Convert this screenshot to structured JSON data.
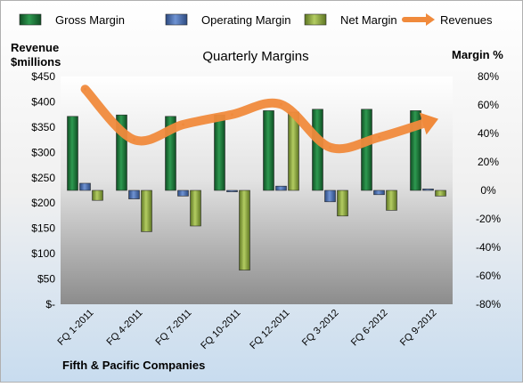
{
  "chart_data": {
    "type": "bar",
    "title": "Quarterly Margins",
    "left_axis_title_line1": "Revenue",
    "left_axis_title_line2": "$millions",
    "right_axis_title": "Margin %",
    "footer": "Fifth & Pacific Companies",
    "categories": [
      "FQ 1-2011",
      "FQ 4-2011",
      "FQ 7-2011",
      "FQ 10-2011",
      "FQ 12-2011",
      "FQ 3-2012",
      "FQ 6-2012",
      "FQ 9-2012"
    ],
    "left_axis": {
      "min": 0,
      "max": 450,
      "step": 50,
      "tick_labels": [
        "$-",
        "$50",
        "$100",
        "$150",
        "$200",
        "$250",
        "$300",
        "$350",
        "$400",
        "$450"
      ]
    },
    "right_axis": {
      "min": -80,
      "max": 80,
      "step": 20,
      "tick_labels": [
        "-80%",
        "-60%",
        "-40%",
        "-20%",
        "0%",
        "20%",
        "40%",
        "60%",
        "80%"
      ]
    },
    "legend_position": "top",
    "series": [
      {
        "name": "Gross Margin",
        "kind": "bar",
        "axis": "right",
        "color": "#1e7a3c",
        "values": [
          52,
          53,
          52,
          53,
          56,
          57,
          57,
          56
        ]
      },
      {
        "name": "Operating Margin",
        "kind": "bar",
        "axis": "right",
        "color": "#4a6fb5",
        "values": [
          5,
          -6,
          -4,
          -1,
          3,
          -8,
          -3,
          1
        ]
      },
      {
        "name": "Net Margin",
        "kind": "bar",
        "axis": "right",
        "color": "#8fac3a",
        "values": [
          -7,
          -29,
          -25,
          -56,
          55,
          -18,
          -14,
          -4
        ]
      },
      {
        "name": "Revenues",
        "kind": "line",
        "axis": "left",
        "color": "#f08a3c",
        "values": [
          425,
          325,
          355,
          375,
          395,
          310,
          330,
          360
        ]
      }
    ]
  }
}
